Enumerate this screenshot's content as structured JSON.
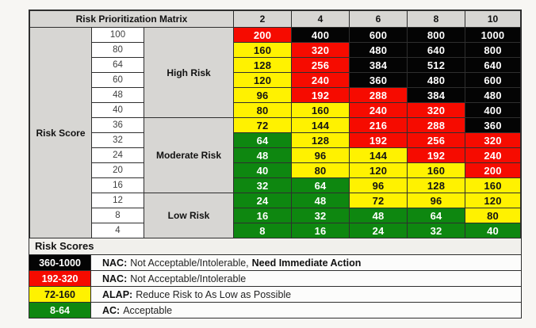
{
  "page": {
    "background": "#f7f6f3"
  },
  "chart_data": {
    "type": "heatmap",
    "title": "Risk Prioritization Matrix",
    "row_axis_label": "Risk Score",
    "column_headers": [
      "2",
      "4",
      "6",
      "8",
      "10"
    ],
    "colors": {
      "red": "#f60b00",
      "yellow": "#fff200",
      "green": "#0e8710",
      "black": "#040404"
    },
    "text_colors": {
      "red": "#ffffff",
      "yellow": "#141414",
      "green": "#ffffff",
      "black": "#ffffff"
    },
    "groups": [
      {
        "label": "High Risk",
        "rows": [
          {
            "score": "100",
            "cells": [
              [
                "200",
                "red"
              ],
              [
                "400",
                "black"
              ],
              [
                "600",
                "black"
              ],
              [
                "800",
                "black"
              ],
              [
                "1000",
                "black"
              ]
            ]
          },
          {
            "score": "80",
            "cells": [
              [
                "160",
                "yellow"
              ],
              [
                "320",
                "red"
              ],
              [
                "480",
                "black"
              ],
              [
                "640",
                "black"
              ],
              [
                "800",
                "black"
              ]
            ]
          },
          {
            "score": "64",
            "cells": [
              [
                "128",
                "yellow"
              ],
              [
                "256",
                "red"
              ],
              [
                "384",
                "black"
              ],
              [
                "512",
                "black"
              ],
              [
                "640",
                "black"
              ]
            ]
          },
          {
            "score": "60",
            "cells": [
              [
                "120",
                "yellow"
              ],
              [
                "240",
                "red"
              ],
              [
                "360",
                "black"
              ],
              [
                "480",
                "black"
              ],
              [
                "600",
                "black"
              ]
            ]
          },
          {
            "score": "48",
            "cells": [
              [
                "96",
                "yellow"
              ],
              [
                "192",
                "red"
              ],
              [
                "288",
                "red"
              ],
              [
                "384",
                "black"
              ],
              [
                "480",
                "black"
              ]
            ]
          },
          {
            "score": "40",
            "cells": [
              [
                "80",
                "yellow"
              ],
              [
                "160",
                "yellow"
              ],
              [
                "240",
                "red"
              ],
              [
                "320",
                "red"
              ],
              [
                "400",
                "black"
              ]
            ]
          }
        ]
      },
      {
        "label": "Moderate Risk",
        "rows": [
          {
            "score": "36",
            "cells": [
              [
                "72",
                "yellow"
              ],
              [
                "144",
                "yellow"
              ],
              [
                "216",
                "red"
              ],
              [
                "288",
                "red"
              ],
              [
                "360",
                "black"
              ]
            ]
          },
          {
            "score": "32",
            "cells": [
              [
                "64",
                "green"
              ],
              [
                "128",
                "yellow"
              ],
              [
                "192",
                "red"
              ],
              [
                "256",
                "red"
              ],
              [
                "320",
                "red"
              ]
            ]
          },
          {
            "score": "24",
            "cells": [
              [
                "48",
                "green"
              ],
              [
                "96",
                "yellow"
              ],
              [
                "144",
                "yellow"
              ],
              [
                "192",
                "red"
              ],
              [
                "240",
                "red"
              ]
            ]
          },
          {
            "score": "20",
            "cells": [
              [
                "40",
                "green"
              ],
              [
                "80",
                "yellow"
              ],
              [
                "120",
                "yellow"
              ],
              [
                "160",
                "yellow"
              ],
              [
                "200",
                "red"
              ]
            ]
          },
          {
            "score": "16",
            "cells": [
              [
                "32",
                "green"
              ],
              [
                "64",
                "green"
              ],
              [
                "96",
                "yellow"
              ],
              [
                "128",
                "yellow"
              ],
              [
                "160",
                "yellow"
              ]
            ]
          }
        ]
      },
      {
        "label": "Low Risk",
        "rows": [
          {
            "score": "12",
            "cells": [
              [
                "24",
                "green"
              ],
              [
                "48",
                "green"
              ],
              [
                "72",
                "yellow"
              ],
              [
                "96",
                "yellow"
              ],
              [
                "120",
                "yellow"
              ]
            ]
          },
          {
            "score": "8",
            "cells": [
              [
                "16",
                "green"
              ],
              [
                "32",
                "green"
              ],
              [
                "48",
                "green"
              ],
              [
                "64",
                "green"
              ],
              [
                "80",
                "yellow"
              ]
            ]
          },
          {
            "score": "4",
            "cells": [
              [
                "8",
                "green"
              ],
              [
                "16",
                "green"
              ],
              [
                "24",
                "green"
              ],
              [
                "32",
                "green"
              ],
              [
                "40",
                "green"
              ]
            ]
          }
        ]
      }
    ],
    "legend": {
      "header": "Risk Scores",
      "entries": [
        {
          "range": "360-1000",
          "color": "black",
          "abbr": "NAC:",
          "text": "Not Acceptable/Intolerable,",
          "bold_suffix": "Need Immediate Action"
        },
        {
          "range": "192-320",
          "color": "red",
          "abbr": "NAC:",
          "text": "Not Acceptable/Intolerable",
          "bold_suffix": ""
        },
        {
          "range": "72-160",
          "color": "yellow",
          "abbr": "ALAP:",
          "text": "Reduce Risk to As Low as Possible",
          "bold_suffix": ""
        },
        {
          "range": "8-64",
          "color": "green",
          "abbr": "AC:",
          "text": "Acceptable",
          "bold_suffix": ""
        }
      ]
    }
  }
}
